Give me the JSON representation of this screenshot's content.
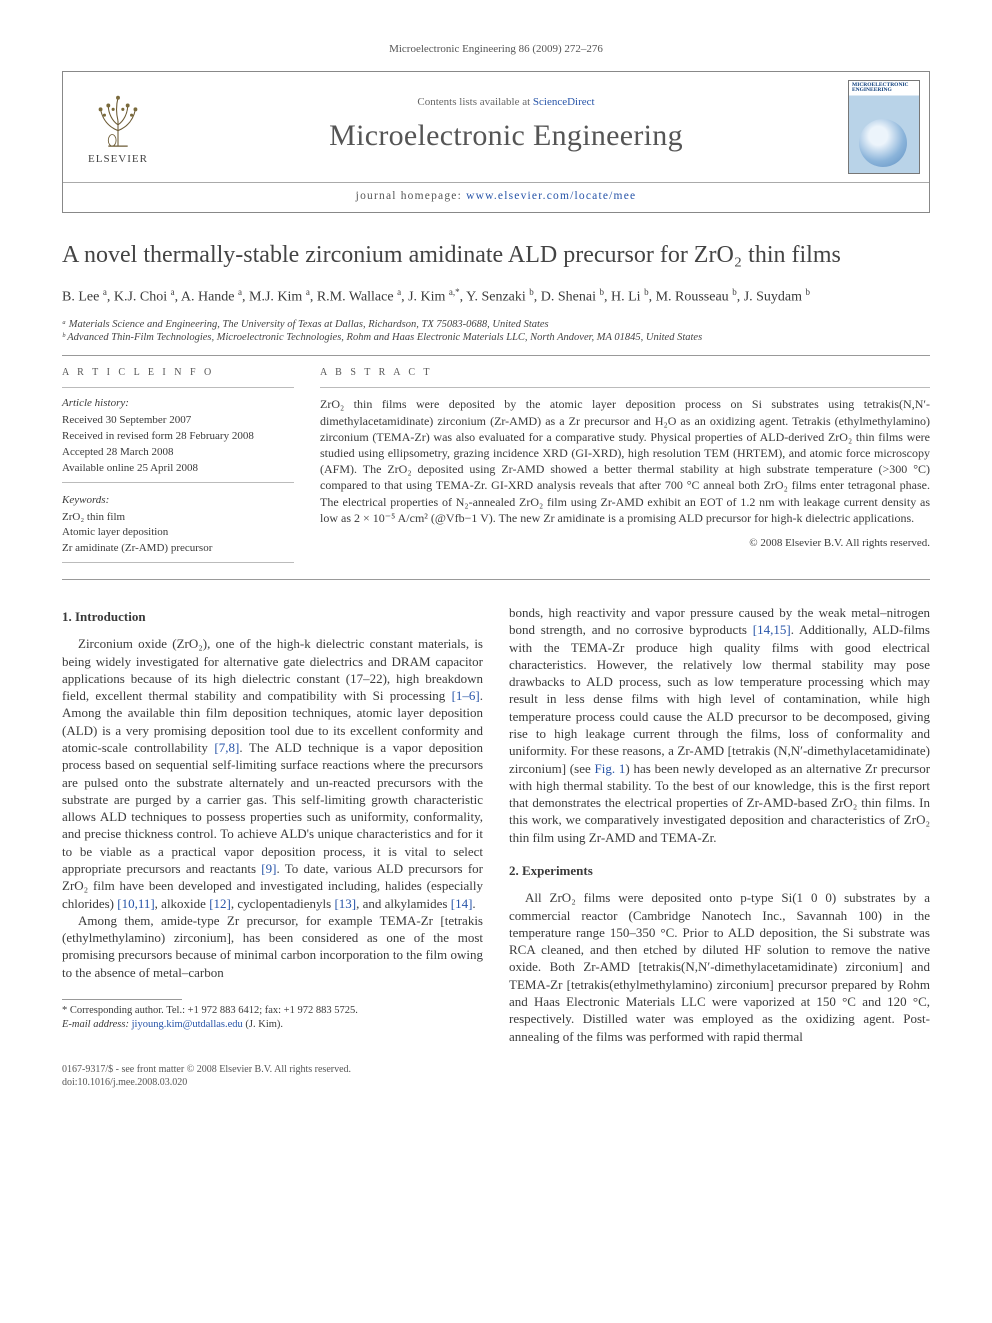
{
  "runningHead": "Microelectronic Engineering 86 (2009) 272–276",
  "header": {
    "publisherLabel": "ELSEVIER",
    "availPrefix": "Contents lists available at ",
    "availLink": "ScienceDirect",
    "journalTitle": "Microelectronic Engineering",
    "homepageLabel": "journal homepage: ",
    "homepageUrl": "www.elsevier.com/locate/mee",
    "coverTitle": "MICROELECTRONIC ENGINEERING"
  },
  "title": "A novel thermally-stable zirconium amidinate ALD precursor for ZrO₂ thin films",
  "authorsHtml": "B. Lee <sup>a</sup>, K.J. Choi <sup>a</sup>, A. Hande <sup>a</sup>, M.J. Kim <sup>a</sup>, R.M. Wallace <sup>a</sup>, J. Kim <sup>a,*</sup>, Y. Senzaki <sup>b</sup>, D. Shenai <sup>b</sup>, H. Li <sup>b</sup>, M. Rousseau <sup>b</sup>, J. Suydam <sup>b</sup>",
  "affiliations": [
    "ᵃ Materials Science and Engineering, The University of Texas at Dallas, Richardson, TX 75083-0688, United States",
    "ᵇ Advanced Thin-Film Technologies, Microelectronic Technologies, Rohm and Haas Electronic Materials LLC, North Andover, MA 01845, United States"
  ],
  "info": {
    "articleInfoHead": "A R T I C L E   I N F O",
    "abstractHead": "A B S T R A C T",
    "historyLabel": "Article history:",
    "history": [
      "Received 30 September 2007",
      "Received in revised form 28 February 2008",
      "Accepted 28 March 2008",
      "Available online 25 April 2008"
    ],
    "keywordsLabel": "Keywords:",
    "keywords": [
      "ZrO₂ thin film",
      "Atomic layer deposition",
      "Zr amidinate (Zr-AMD) precursor"
    ]
  },
  "abstract": "ZrO₂ thin films were deposited by the atomic layer deposition process on Si substrates using tetrakis(N,N′-dimethylacetamidinate) zirconium (Zr-AMD) as a Zr precursor and H₂O as an oxidizing agent. Tetrakis (ethylmethylamino) zirconium (TEMA-Zr) was also evaluated for a comparative study. Physical properties of ALD-derived ZrO₂ thin films were studied using ellipsometry, grazing incidence XRD (GI-XRD), high resolution TEM (HRTEM), and atomic force microscopy (AFM). The ZrO₂ deposited using Zr-AMD showed a better thermal stability at high substrate temperature (>300 °C) compared to that using TEMA-Zr. GI-XRD analysis reveals that after 700 °C anneal both ZrO₂ films enter tetragonal phase. The electrical properties of N₂-annealed ZrO₂ film using Zr-AMD exhibit an EOT of 1.2 nm with leakage current density as low as 2 × 10⁻⁵ A/cm² (@Vfb−1 V). The new Zr amidinate is a promising ALD precursor for high-k dielectric applications.",
  "copyright": "© 2008 Elsevier B.V. All rights reserved.",
  "sections": {
    "intro": {
      "head": "1. Introduction",
      "p1a": "Zirconium oxide (ZrO₂), one of the high-k dielectric constant materials, is being widely investigated for alternative gate dielectrics and DRAM capacitor applications because of its high dielectric constant (17–22), high breakdown field, excellent thermal stability and compatibility with Si processing ",
      "p1ref1": "[1–6]",
      "p1b": ". Among the available thin film deposition techniques, atomic layer deposition (ALD) is a very promising deposition tool due to its excellent conformity and atomic-scale controllability ",
      "p1ref2": "[7,8]",
      "p1c": ". The ALD technique is a vapor deposition process based on sequential self-limiting surface reactions where the precursors are pulsed onto the substrate alternately and un-reacted precursors with the substrate are purged by a carrier gas. This self-limiting growth characteristic allows ALD techniques to possess properties such as uniformity, conformality, and precise thickness control. To achieve ALD's unique characteristics and for it to be viable as a practical vapor deposition process, it is vital to select appropriate precursors and reactants ",
      "p1ref3": "[9]",
      "p1d": ". To date, various ALD precursors for ZrO₂ film have been developed and investigated including, halides (especially chlorides) ",
      "p1ref4": "[10,11]",
      "p1e": ", alkoxide ",
      "p1ref5": "[12]",
      "p1f": ", cyclopentadienyls ",
      "p1ref6": "[13]",
      "p1g": ", and alkylamides ",
      "p1ref7": "[14]",
      "p1h": ".",
      "p2": "Among them, amide-type Zr precursor, for example TEMA-Zr [tetrakis (ethylmethylamino) zirconium], has been considered as one of the most promising precursors because of minimal carbon incorporation to the film owing to the absence of metal–carbon",
      "p3a": "bonds, high reactivity and vapor pressure caused by the weak metal–nitrogen bond strength, and no corrosive byproducts ",
      "p3ref1": "[14,15]",
      "p3b": ". Additionally, ALD-films with the TEMA-Zr produce high quality films with good electrical characteristics. However, the relatively low thermal stability may pose drawbacks to ALD process, such as low temperature processing which may result in less dense films with high level of contamination, while high temperature process could cause the ALD precursor to be decomposed, giving rise to high leakage current through the films, loss of conformality and uniformity. For these reasons, a Zr-AMD [tetrakis (N,N′-dimethylacetamidinate) zirconium] (see ",
      "p3ref2": "Fig. 1",
      "p3c": ") has been newly developed as an alternative Zr precursor with high thermal stability. To the best of our knowledge, this is the first report that demonstrates the electrical properties of Zr-AMD-based ZrO₂ thin films. In this work, we comparatively investigated deposition and characteristics of ZrO₂ thin film using Zr-AMD and TEMA-Zr."
    },
    "exp": {
      "head": "2. Experiments",
      "p1": "All ZrO₂ films were deposited onto p-type Si(1 0 0) substrates by a commercial reactor (Cambridge Nanotech Inc., Savannah 100) in the temperature range 150–350 °C. Prior to ALD deposition, the Si substrate was RCA cleaned, and then etched by diluted HF solution to remove the native oxide. Both Zr-AMD [tetrakis(N,N′-dimethylacetamidinate) zirconium] and TEMA-Zr [tetrakis(ethylmethylamino) zirconium] precursor prepared by Rohm and Haas Electronic Materials LLC were vaporized at 150 °C and 120 °C, respectively. Distilled water was employed as the oxidizing agent. Post-annealing of the films was performed with rapid thermal"
    }
  },
  "footnote": {
    "corr": "* Corresponding author. Tel.: +1 972 883 6412; fax: +1 972 883 5725.",
    "emailLabel": "E-mail address: ",
    "email": "jiyoung.kim@utdallas.edu",
    "emailSuffix": " (J. Kim)."
  },
  "footer": {
    "left1": "0167-9317/$ - see front matter © 2008 Elsevier B.V. All rights reserved.",
    "left2": "doi:10.1016/j.mee.2008.03.020"
  },
  "style": {
    "linkColor": "#2754a8",
    "textColor": "#3a3a3a",
    "ruleColor": "#999999",
    "pageWidth": 992,
    "pageHeight": 1323
  }
}
